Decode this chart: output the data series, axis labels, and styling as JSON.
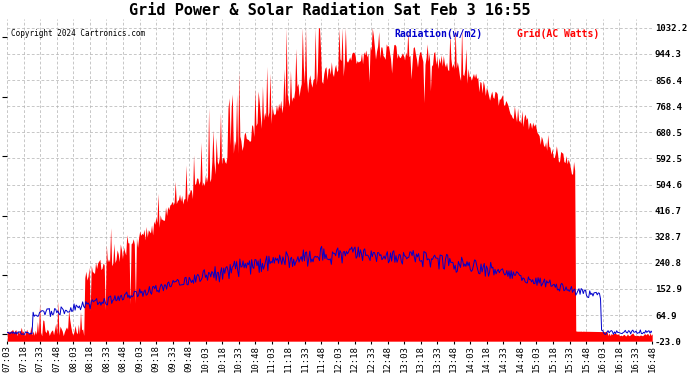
{
  "title": "Grid Power & Solar Radiation Sat Feb 3 16:55",
  "copyright": "Copyright 2024 Cartronics.com",
  "legend_radiation": "Radiation(w/m2)",
  "legend_grid": "Grid(AC Watts)",
  "ymin": -23.0,
  "ymax": 1032.2,
  "yticks": [
    1032.2,
    944.3,
    856.4,
    768.4,
    680.5,
    592.5,
    504.6,
    416.7,
    328.7,
    240.8,
    152.9,
    64.9,
    -23.0
  ],
  "background_color": "#ffffff",
  "grid_color": "#b0b0b0",
  "radiation_color": "#0000cc",
  "grid_ac_color": "#ff0000",
  "title_fontsize": 11,
  "tick_fontsize": 6.5,
  "xtick_labels": [
    "07:03",
    "07:18",
    "07:33",
    "07:48",
    "08:03",
    "08:18",
    "08:33",
    "08:48",
    "09:03",
    "09:18",
    "09:33",
    "09:48",
    "10:03",
    "10:18",
    "10:33",
    "10:48",
    "11:03",
    "11:18",
    "11:33",
    "11:48",
    "12:03",
    "12:18",
    "12:33",
    "12:48",
    "13:03",
    "13:18",
    "13:33",
    "13:48",
    "14:03",
    "14:18",
    "14:33",
    "14:48",
    "15:03",
    "15:18",
    "15:33",
    "15:48",
    "16:03",
    "16:18",
    "16:33",
    "16:48"
  ],
  "n_points": 600
}
